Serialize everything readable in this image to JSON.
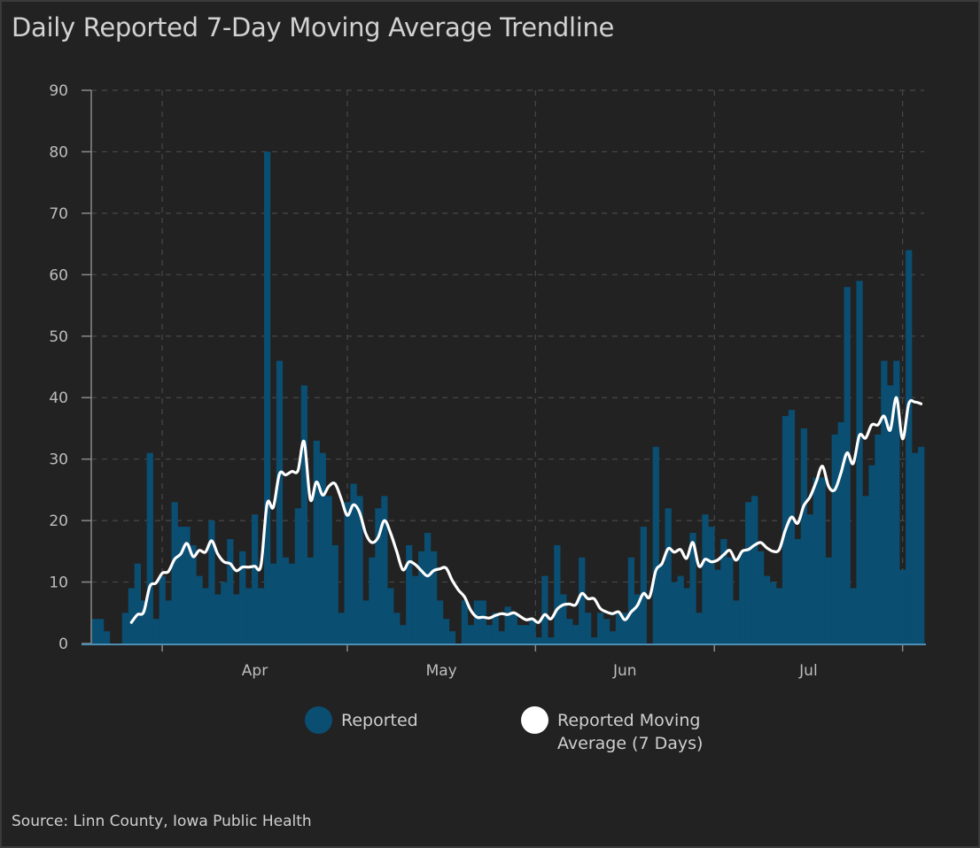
{
  "title": "Daily Reported 7-Day Moving Average Trendline",
  "source": "Source: Linn County, Iowa Public Health",
  "legend": {
    "reported": "Reported",
    "moving_average_line1": "Reported Moving",
    "moving_average_line2": "Average (7 Days)"
  },
  "colors": {
    "bar": "#0a4e72",
    "line": "#ffffff",
    "background": "#222222",
    "grid": "#484848",
    "axis": "#4d8fb5"
  },
  "chart_data": {
    "type": "bar",
    "title": "Daily Reported 7-Day Moving Average Trendline",
    "xlabel": "",
    "ylabel": "",
    "ylim": [
      0,
      90
    ],
    "y_ticks": [
      "0",
      "10",
      "20",
      "30",
      "40",
      "50",
      "60",
      "70",
      "80",
      "90"
    ],
    "grid": true,
    "legend_position": "bottom",
    "month_labels": [
      "Apr",
      "May",
      "Jun",
      "Jul"
    ],
    "month_boundary_indices": [
      11.5,
      41.5,
      72,
      101,
      131.5
    ],
    "series": [
      {
        "name": "Reported",
        "type": "bar",
        "values": [
          4,
          4,
          2,
          0,
          0,
          5,
          9,
          13,
          7,
          31,
          4,
          11,
          7,
          23,
          19,
          19,
          16,
          11,
          9,
          20,
          8,
          10,
          17,
          8,
          15,
          9,
          21,
          9,
          80,
          13,
          46,
          14,
          13,
          22,
          42,
          14,
          33,
          31,
          24,
          16,
          5,
          23,
          26,
          24,
          7,
          14,
          22,
          24,
          9,
          5,
          3,
          16,
          11,
          15,
          18,
          15,
          7,
          4,
          2,
          0,
          7,
          3,
          7,
          7,
          3,
          5,
          2,
          6,
          5,
          3,
          3,
          4,
          1,
          11,
          1,
          16,
          8,
          4,
          3,
          14,
          5,
          1,
          5,
          4,
          2,
          5,
          5,
          14,
          8,
          19,
          0,
          32,
          13,
          22,
          10,
          11,
          9,
          18,
          5,
          21,
          19,
          12,
          17,
          14,
          7,
          15,
          23,
          24,
          15,
          11,
          10,
          9,
          37,
          38,
          17,
          35,
          21,
          27,
          27,
          14,
          34,
          36,
          58,
          9,
          59,
          24,
          29,
          34,
          46,
          42,
          46,
          12,
          64,
          31,
          32
        ]
      },
      {
        "name": "Reported Moving Average (7 Days)",
        "type": "line",
        "window": 7,
        "derived_from": "Reported"
      }
    ]
  }
}
